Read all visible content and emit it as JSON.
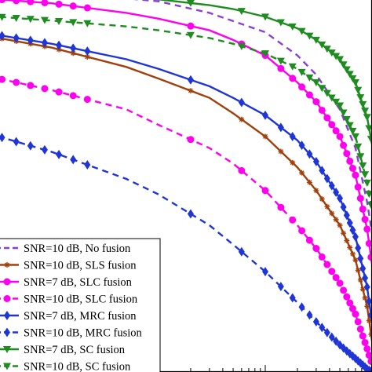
{
  "chart_data": {
    "type": "line",
    "title": "",
    "xlabel": "",
    "ylabel": "",
    "x_scale": "log",
    "y_scale": "linear",
    "grid": false,
    "legend_position": "bottom-left",
    "series": [
      {
        "name": "SNR=10 dB, No fusion",
        "color": "#8a3fd6",
        "dash": "dashed",
        "marker": "none",
        "points": [
          [
            0.0001,
            0.995
          ],
          [
            0.001,
            0.985
          ],
          [
            0.01,
            0.96
          ],
          [
            0.03,
            0.93
          ],
          [
            0.1,
            0.88
          ],
          [
            0.2,
            0.82
          ],
          [
            0.3,
            0.77
          ],
          [
            0.5,
            0.68
          ],
          [
            0.7,
            0.58
          ],
          [
            0.9,
            0.44
          ],
          [
            1.0,
            0.36
          ]
        ]
      },
      {
        "name": "SNR=10 dB, SLS fusion",
        "color": "#a0400b",
        "dash": "solid",
        "marker": "star",
        "points": [
          [
            0.0001,
            0.89
          ],
          [
            0.001,
            0.84
          ],
          [
            0.005,
            0.79
          ],
          [
            0.01,
            0.76
          ],
          [
            0.03,
            0.71
          ],
          [
            0.05,
            0.67
          ],
          [
            0.1,
            0.61
          ],
          [
            0.2,
            0.53
          ],
          [
            0.3,
            0.47
          ],
          [
            0.5,
            0.38
          ],
          [
            0.7,
            0.29
          ],
          [
            0.9,
            0.17
          ],
          [
            1.0,
            0.08
          ]
        ]
      },
      {
        "name": "SNR=7 dB, SLC fusion",
        "color": "#ff00ee",
        "dash": "solid",
        "marker": "circle",
        "points": [
          [
            0.0001,
            0.975
          ],
          [
            0.001,
            0.955
          ],
          [
            0.005,
            0.93
          ],
          [
            0.01,
            0.915
          ],
          [
            0.03,
            0.885
          ],
          [
            0.05,
            0.86
          ],
          [
            0.1,
            0.82
          ],
          [
            0.2,
            0.75
          ],
          [
            0.3,
            0.7
          ],
          [
            0.5,
            0.61
          ],
          [
            0.7,
            0.51
          ],
          [
            0.9,
            0.37
          ],
          [
            1.0,
            0.28
          ]
        ]
      },
      {
        "name": "SNR=10 dB, SLC fusion",
        "color": "#ff00ee",
        "dash": "dashed",
        "marker": "circle",
        "points": [
          [
            0.0001,
            0.79
          ],
          [
            0.001,
            0.73
          ],
          [
            0.005,
            0.68
          ],
          [
            0.01,
            0.64
          ],
          [
            0.03,
            0.58
          ],
          [
            0.05,
            0.54
          ],
          [
            0.1,
            0.47
          ],
          [
            0.2,
            0.38
          ],
          [
            0.3,
            0.32
          ],
          [
            0.5,
            0.23
          ],
          [
            0.7,
            0.15
          ],
          [
            0.9,
            0.06
          ],
          [
            1.0,
            0.02
          ]
        ]
      },
      {
        "name": "SNR=7 dB, MRC fusion",
        "color": "#1f35d6",
        "dash": "solid",
        "marker": "diamond",
        "points": [
          [
            0.0001,
            0.895
          ],
          [
            0.001,
            0.85
          ],
          [
            0.005,
            0.81
          ],
          [
            0.01,
            0.785
          ],
          [
            0.03,
            0.74
          ],
          [
            0.05,
            0.71
          ],
          [
            0.1,
            0.665
          ],
          [
            0.2,
            0.6
          ],
          [
            0.3,
            0.545
          ],
          [
            0.5,
            0.45
          ],
          [
            0.7,
            0.35
          ],
          [
            0.9,
            0.22
          ],
          [
            1.0,
            0.13
          ]
        ]
      },
      {
        "name": "SNR=10 dB, MRC fusion",
        "color": "#1f35d6",
        "dash": "dashed",
        "marker": "diamond",
        "points": [
          [
            0.0001,
            0.65
          ],
          [
            0.001,
            0.57
          ],
          [
            0.005,
            0.5
          ],
          [
            0.01,
            0.46
          ],
          [
            0.03,
            0.38
          ],
          [
            0.05,
            0.33
          ],
          [
            0.1,
            0.26
          ],
          [
            0.2,
            0.18
          ],
          [
            0.3,
            0.13
          ],
          [
            0.5,
            0.07
          ],
          [
            0.7,
            0.035
          ],
          [
            0.9,
            0.008
          ],
          [
            1.0,
            0.0
          ]
        ]
      },
      {
        "name": "SNR=7 dB, SC fusion",
        "color": "#1e8c1e",
        "dash": "solid",
        "marker": "triangle-down",
        "points": [
          [
            0.0001,
            0.985
          ],
          [
            0.001,
            0.98
          ],
          [
            0.005,
            0.97
          ],
          [
            0.01,
            0.965
          ],
          [
            0.03,
            0.95
          ],
          [
            0.05,
            0.94
          ],
          [
            0.1,
            0.92
          ],
          [
            0.2,
            0.89
          ],
          [
            0.3,
            0.86
          ],
          [
            0.5,
            0.81
          ],
          [
            0.7,
            0.75
          ],
          [
            0.9,
            0.66
          ],
          [
            1.0,
            0.59
          ]
        ]
      },
      {
        "name": "SNR=10 dB, SC fusion",
        "color": "#1e8c1e",
        "dash": "dashed",
        "marker": "triangle-down",
        "points": [
          [
            0.0001,
            0.93
          ],
          [
            0.001,
            0.91
          ],
          [
            0.005,
            0.895
          ],
          [
            0.01,
            0.885
          ],
          [
            0.03,
            0.865
          ],
          [
            0.05,
            0.85
          ],
          [
            0.1,
            0.825
          ],
          [
            0.2,
            0.785
          ],
          [
            0.3,
            0.75
          ],
          [
            0.5,
            0.69
          ],
          [
            0.7,
            0.61
          ],
          [
            0.9,
            0.49
          ],
          [
            1.0,
            0.42
          ]
        ]
      }
    ]
  }
}
